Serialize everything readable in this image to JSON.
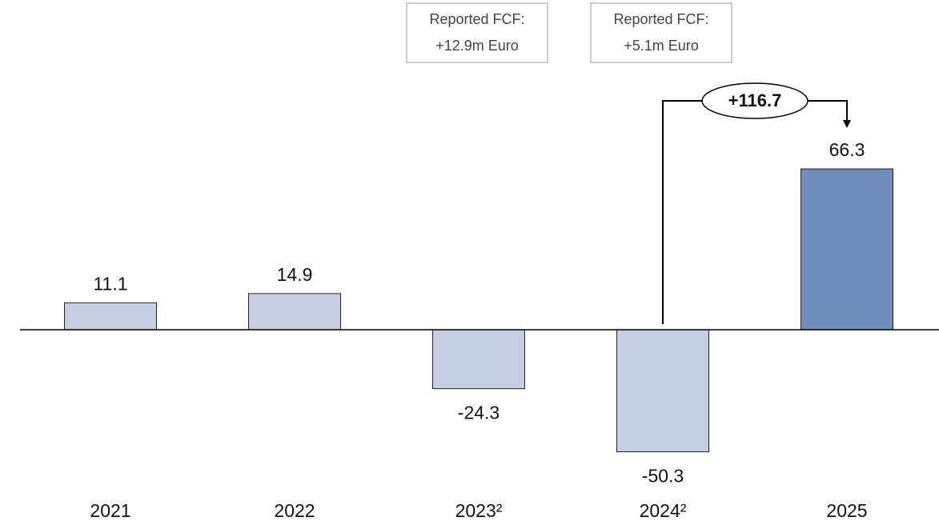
{
  "chart_data": {
    "type": "bar",
    "categories": [
      "2021",
      "2022",
      "2023²",
      "2024²",
      "2025"
    ],
    "values": [
      11.1,
      14.9,
      -24.3,
      -50.3,
      66.3
    ],
    "colors": [
      "#c5cfe1",
      "#c5cfe1",
      "#c5cfe1",
      "#c5cfe1",
      "#6f8cba"
    ],
    "annotations": [
      {
        "category": "2023²",
        "lines": [
          "Reported FCF:",
          "+12.9m Euro"
        ]
      },
      {
        "category": "2024²",
        "lines": [
          "Reported FCF:",
          "+5.1m Euro"
        ]
      }
    ],
    "change": {
      "label": "+116.7",
      "from": "2024²",
      "to": "2025"
    }
  }
}
